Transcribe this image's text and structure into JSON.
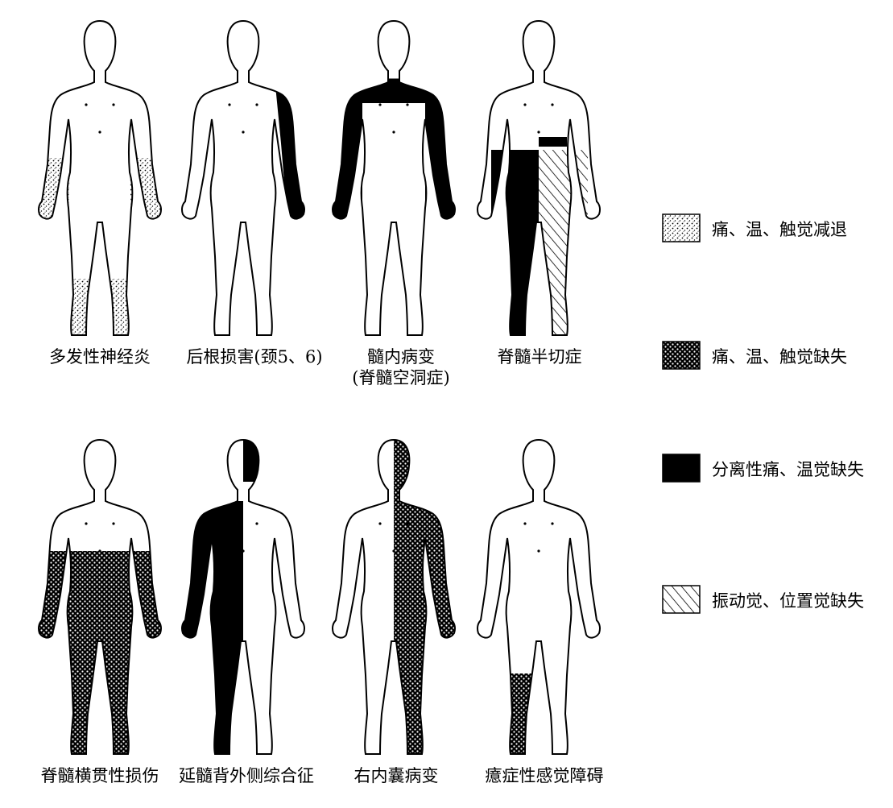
{
  "figures": [
    {
      "caption": "多发性神经炎"
    },
    {
      "caption": "后根损害(颈5、6)"
    },
    {
      "caption": "髓内病变",
      "caption2": "(脊髓空洞症)"
    },
    {
      "caption": "脊髓半切症"
    },
    {
      "caption": "脊髓横贯性损伤"
    },
    {
      "caption": "延髓背外侧综合征"
    },
    {
      "caption": "右内囊病变"
    },
    {
      "caption": "癔症性感觉障碍"
    }
  ],
  "legend": [
    {
      "label": "痛、温、触觉减退",
      "pattern": "dotted"
    },
    {
      "label": "痛、温、触觉缺失",
      "pattern": "crosshatch"
    },
    {
      "label": "分离性痛、温觉缺失",
      "pattern": "solid"
    },
    {
      "label": "振动觉、位置觉缺失",
      "pattern": "diagonal"
    }
  ]
}
